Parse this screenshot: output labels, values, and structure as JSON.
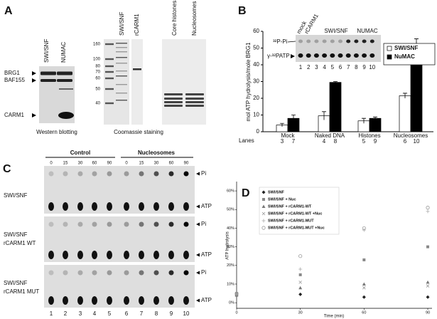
{
  "panel_labels": [
    "A",
    "B",
    "C",
    "D"
  ],
  "panel_a": {
    "blot_lanes": [
      "SWI/SNF",
      "NUMAC"
    ],
    "blot_markers": [
      "BRG1",
      "BAF155",
      "CARM1"
    ],
    "blot_caption": "Western blotting",
    "mw_markers": [
      160,
      100,
      80,
      70,
      60,
      50,
      40
    ],
    "gel_lanes": [
      "SWI/SNF",
      "rCARM1"
    ],
    "histone_lanes": [
      "Core histones",
      "Nucleosomes"
    ],
    "gel_caption": "Coomassie staining"
  },
  "panel_c": {
    "groups": [
      "Control",
      "Nucleosomes"
    ],
    "times": [
      "0",
      "15",
      "30",
      "60",
      "90",
      "0",
      "15",
      "30",
      "60",
      "90"
    ],
    "rows": [
      [
        "SWI/SNF"
      ],
      [
        "SWI/SNF",
        "rCARM1 WT"
      ],
      [
        "SWI/SNF",
        "rCARM1 MUT"
      ]
    ],
    "spot_labels": [
      "Pi",
      "ATP"
    ],
    "lanes": [
      "1",
      "2",
      "3",
      "4",
      "5",
      "6",
      "7",
      "8",
      "9",
      "10"
    ]
  },
  "chart_data": [
    {
      "type": "bar",
      "y_label": "mol ATP hydrolysis/mole BRG1",
      "categories": [
        "Mock",
        "Naked DNA",
        "Histones",
        "Nucleosomes"
      ],
      "lanes_label": "Lanes",
      "lane_numbers": [
        [
          "3",
          "7"
        ],
        [
          "4",
          "8"
        ],
        [
          "5",
          "9"
        ],
        [
          "6",
          "10"
        ]
      ],
      "series": [
        {
          "name": "SWI/SNF",
          "color": "#ffffff",
          "values": [
            4,
            9.5,
            6.5,
            21.5
          ],
          "errors": [
            1,
            2.5,
            1.5,
            1.5
          ]
        },
        {
          "name": "NuMAC",
          "color": "#000000",
          "values": [
            8,
            29.5,
            8,
            51.5
          ],
          "errors": [
            2,
            0.5,
            0.8,
            4
          ]
        }
      ],
      "ylim": [
        0,
        60
      ],
      "yticks": [
        0,
        10,
        20,
        30,
        40,
        50,
        60
      ],
      "inset": {
        "lane_groups": [
          "mock",
          "rCARM1",
          "SWI/SNF",
          "NUMAC"
        ],
        "spots": [
          "³²P-Pi",
          "γ-³²PATP"
        ],
        "lanes": [
          "1",
          "2",
          "3",
          "4",
          "5",
          "6",
          "7",
          "8",
          "9",
          "10"
        ]
      }
    },
    {
      "type": "scatter",
      "x_label": "Time (min)",
      "y_label": "ATP hydrolysis",
      "x": [
        0,
        30,
        60,
        90
      ],
      "xlim": [
        0,
        92
      ],
      "xticks": [
        0,
        30,
        60,
        90
      ],
      "ylim": [
        -3,
        65
      ],
      "yticks": [
        {
          "value": 0,
          "label": "0%"
        },
        {
          "value": 10,
          "label": "10%"
        },
        {
          "value": 20,
          "label": "20%"
        },
        {
          "value": 30,
          "label": "30%"
        },
        {
          "value": 40,
          "label": "40%"
        },
        {
          "value": 50,
          "label": "50%"
        },
        {
          "value": 60,
          "label": "60%"
        }
      ],
      "series": [
        {
          "name": "SWI/SNF",
          "marker": "diamond",
          "color": "#222222",
          "values": [
            4,
            4.5,
            3,
            3
          ]
        },
        {
          "name": "SWI/SNF + Nuc",
          "marker": "square",
          "color": "#888888",
          "values": [
            5,
            15,
            23,
            30
          ]
        },
        {
          "name": "SWI/SNF + rCARM1-WT",
          "marker": "triangle",
          "color": "#777777",
          "values": [
            4,
            8,
            10,
            11
          ]
        },
        {
          "name": "SWI/SNF + rCARM1-WT +Nuc",
          "marker": "x",
          "color": "#999999",
          "values": [
            4.5,
            11,
            8,
            9
          ]
        },
        {
          "name": "SWI/SNF + rCARM1-MUT",
          "marker": "plus",
          "color": "#aaaaaa",
          "values": [
            4.5,
            18,
            39,
            49
          ]
        },
        {
          "name": "SWI/SNF + rCARM1-MUT +Nuc",
          "marker": "circle-open",
          "color": "#999999",
          "values": [
            5,
            25,
            40,
            51
          ]
        }
      ]
    }
  ]
}
